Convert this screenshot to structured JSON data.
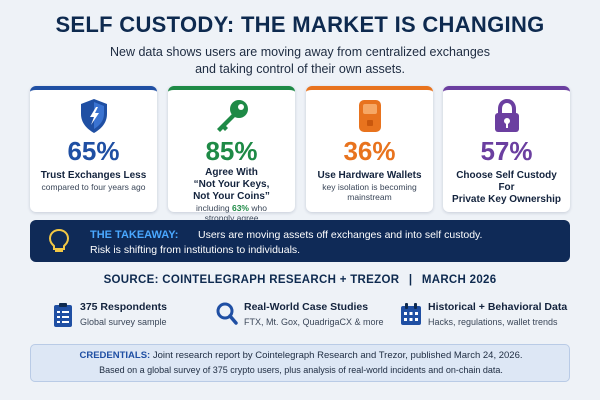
{
  "header": {
    "title": "SELF CUSTODY: THE MARKET IS CHANGING",
    "subtitle_line1": "New data shows users are moving away from centralized exchanges",
    "subtitle_line2": "and taking control of their own assets."
  },
  "cards": [
    {
      "stat": "65%",
      "label": "Trust Exchanges Less",
      "note": "compared to four years ago",
      "accent": "#1f4fa3",
      "icon": "shield-icon"
    },
    {
      "stat": "85%",
      "label_line1": "Agree With",
      "label_line2": "“Not Your Keys,",
      "label_line3": "Not Your Coins”",
      "note_pre": "including",
      "note_hl": "63%",
      "note_post": "who",
      "note_line2": "strongly agree",
      "accent": "#1e8a46",
      "icon": "key-icon"
    },
    {
      "stat": "36%",
      "label": "Use Hardware Wallets",
      "note_line1": "key isolation is becoming",
      "note_line2": "mainstream",
      "accent": "#e8731e",
      "icon": "hardware-wallet-icon"
    },
    {
      "stat": "57%",
      "label_line1": "Choose Self Custody For",
      "label_line2": "Private Key Ownership",
      "accent": "#6b3fa0",
      "icon": "lock-icon"
    }
  ],
  "takeaway": {
    "label": "THE TAKEAWAY:",
    "text_line1": "Users are moving assets off exchanges and into self custody.",
    "text_line2": "Risk is shifting from institutions to individuals.",
    "icon": "lightbulb-icon"
  },
  "source": {
    "prefix": "SOURCE:",
    "org": "COINTELEGRAPH RESEARCH + TREZOR",
    "divider": "|",
    "date": "MARCH 2026"
  },
  "facts": [
    {
      "title": "375 Respondents",
      "sub": "Global survey sample",
      "icon": "clipboard-icon"
    },
    {
      "title": "Real-World Case Studies",
      "sub": "FTX, Mt. Gox, QuadrigaCX & more",
      "icon": "magnifier-icon"
    },
    {
      "title": "Historical + Behavioral Data",
      "sub": "Hacks, regulations, wallet trends",
      "icon": "calendar-icon"
    }
  ],
  "credentials": {
    "label": "CREDENTIALS:",
    "line1": "Joint research report by Cointelegraph Research and Trezor, published March 24, 2026.",
    "line2": "Based on a global survey of 375 crypto users, plus analysis of real-world incidents and on-chain data."
  },
  "colors": {
    "navy": "#0e2a4f",
    "blue": "#1f4fa3",
    "green": "#1e8a46",
    "orange": "#e8731e",
    "purple": "#6b3fa0",
    "takeaway_bg": "#0f2a57",
    "takeaway_label": "#4aa8ff"
  }
}
